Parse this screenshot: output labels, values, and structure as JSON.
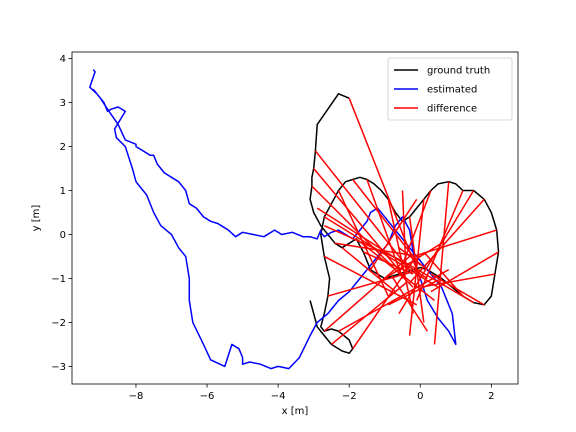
{
  "chart_data": {
    "type": "line",
    "title": "",
    "xlabel": "x [m]",
    "ylabel": "y [m]",
    "xlim": [
      -9.8,
      2.75
    ],
    "ylim": [
      -3.4,
      4.15
    ],
    "xticks": [
      -8,
      -6,
      -4,
      -2,
      0,
      2
    ],
    "yticks": [
      -3,
      -2,
      -1,
      0,
      1,
      2,
      3,
      4
    ],
    "xtick_labels": [
      "−8",
      "−6",
      "−4",
      "−2",
      "0",
      "2"
    ],
    "ytick_labels": [
      "−3",
      "−2",
      "−1",
      "0",
      "1",
      "2",
      "3",
      "4"
    ],
    "legend": {
      "position": "upper right",
      "entries": [
        {
          "label": "ground truth",
          "color": "#000000"
        },
        {
          "label": "estimated",
          "color": "#0000ff"
        },
        {
          "label": "difference",
          "color": "#ff0000"
        }
      ]
    },
    "series": [
      {
        "name": "ground truth",
        "color": "#000000",
        "x": [
          -2.0,
          -2.3,
          -2.9,
          -2.95,
          -3.0,
          -3.05,
          -3.05,
          -3.1,
          -3.0,
          -2.8,
          -2.6,
          -2.4,
          -2.2,
          -2.0,
          -1.8,
          -1.6,
          -1.4,
          -1.2,
          -1.0,
          -0.8,
          -0.6,
          -0.4,
          -0.2,
          0.0,
          0.2,
          0.4,
          0.6,
          0.9,
          1.2,
          1.5,
          1.8,
          2.0,
          2.1,
          2.2,
          2.15,
          2.0,
          1.8,
          1.5,
          1.2,
          1.0,
          0.8,
          0.5,
          0.3,
          0.1,
          -0.1,
          -0.3,
          -0.5,
          -0.7,
          -0.9,
          -1.1,
          -1.3,
          -1.5,
          -1.7,
          -1.9,
          -2.1,
          -2.3,
          -2.5,
          -2.7,
          -2.8,
          -2.7,
          -2.55,
          -2.6,
          -2.7,
          -2.8,
          -2.7,
          -2.5,
          -2.3,
          -2.0,
          -1.9,
          -2.0,
          -2.2,
          -2.5,
          -2.7,
          -2.9,
          -3.0,
          -3.1
        ],
        "y": [
          3.1,
          3.2,
          2.5,
          1.9,
          1.5,
          1.3,
          1.1,
          0.8,
          0.5,
          0.2,
          0.0,
          -0.2,
          -0.3,
          -0.2,
          -0.1,
          -0.4,
          -0.8,
          -0.9,
          -1.0,
          -0.95,
          -0.9,
          -0.85,
          -0.8,
          -0.75,
          -0.8,
          -0.9,
          -1.0,
          -1.2,
          -1.4,
          -1.55,
          -1.6,
          -1.4,
          -0.9,
          -0.4,
          0.1,
          0.5,
          0.8,
          1.0,
          1.0,
          1.15,
          1.2,
          1.15,
          1.0,
          0.8,
          0.6,
          0.4,
          0.3,
          0.5,
          0.8,
          1.0,
          1.15,
          1.25,
          1.3,
          1.25,
          1.2,
          1.0,
          0.7,
          0.4,
          0.0,
          -0.5,
          -1.0,
          -1.4,
          -1.8,
          -2.1,
          -2.2,
          -2.15,
          -2.2,
          -2.4,
          -2.6,
          -2.7,
          -2.65,
          -2.5,
          -2.3,
          -2.1,
          -1.8,
          -1.5
        ]
      },
      {
        "name": "estimated",
        "color": "#0000ff",
        "x": [
          -9.2,
          -9.15,
          -9.3,
          -9.1,
          -8.9,
          -8.8,
          -8.7,
          -8.5,
          -8.3,
          -8.6,
          -8.55,
          -8.3,
          -8.1,
          -8.0,
          -7.9,
          -7.7,
          -7.5,
          -7.3,
          -7.0,
          -6.8,
          -6.6,
          -6.5,
          -6.5,
          -6.4,
          -6.1,
          -5.9,
          -5.5,
          -5.3,
          -5.1,
          -5.0,
          -5.0,
          -4.8,
          -4.5,
          -4.2,
          -4.0,
          -3.7,
          -3.4,
          -3.1,
          -2.9,
          -2.6,
          -2.3,
          -2.0,
          -1.7,
          -1.5,
          -1.3,
          -1.1,
          -0.9,
          -0.8,
          -0.7,
          -0.5,
          -0.3,
          -0.2,
          -0.1,
          0.0,
          0.2,
          0.5,
          0.8,
          1.0,
          0.9,
          0.6,
          0.3,
          0.0,
          -0.3,
          -0.6,
          -0.9,
          -1.2,
          -1.4,
          -1.5,
          -1.7,
          -1.9,
          -2.1,
          -2.3,
          -2.5,
          -2.6,
          -2.7,
          -2.8,
          -2.8,
          -2.85,
          -2.9,
          -3.1,
          -3.3,
          -3.6,
          -3.9,
          -4.1,
          -4.4,
          -4.7,
          -5.0,
          -5.2,
          -5.4,
          -5.6,
          -5.7,
          -5.9,
          -6.1,
          -6.3,
          -6.5,
          -6.6,
          -6.8,
          -7.0,
          -7.2,
          -7.4,
          -7.5,
          -7.6,
          -7.8,
          -8.0,
          -8.0,
          -8.3,
          -8.5,
          -8.8,
          -9.0,
          -9.2
        ],
        "y": [
          3.75,
          3.7,
          3.35,
          3.2,
          3.0,
          2.8,
          2.85,
          2.9,
          2.8,
          2.4,
          2.2,
          2.0,
          1.5,
          1.2,
          1.1,
          0.9,
          0.5,
          0.2,
          0.0,
          -0.3,
          -0.5,
          -1.0,
          -1.5,
          -2.0,
          -2.5,
          -2.85,
          -3.0,
          -2.5,
          -2.6,
          -2.8,
          -2.95,
          -2.9,
          -2.95,
          -3.05,
          -3.0,
          -3.05,
          -2.8,
          -2.3,
          -2.0,
          -1.8,
          -1.5,
          -1.3,
          -1.0,
          -0.8,
          -0.6,
          -0.4,
          -0.2,
          0.0,
          0.2,
          0.4,
          0.1,
          -0.4,
          -0.8,
          -1.0,
          -1.5,
          -1.9,
          -2.2,
          -2.5,
          -1.8,
          -1.2,
          -0.9,
          -0.6,
          -0.3,
          0.0,
          0.3,
          0.6,
          0.5,
          0.3,
          0.1,
          -0.1,
          0.0,
          0.1,
          0.05,
          0.0,
          -0.05,
          0.05,
          0.1,
          0.0,
          -0.1,
          -0.05,
          -0.05,
          0.05,
          0.0,
          0.1,
          -0.05,
          0.0,
          0.05,
          -0.05,
          0.1,
          0.2,
          0.25,
          0.3,
          0.4,
          0.6,
          0.7,
          1.0,
          1.2,
          1.3,
          1.4,
          1.6,
          1.8,
          1.8,
          1.9,
          2.0,
          2.05,
          2.15,
          2.5,
          2.85,
          3.1,
          3.3
        ]
      },
      {
        "name": "difference",
        "color": "#ff0000",
        "segments": [
          [
            [
              -2.95,
              1.9
            ],
            [
              -0.3,
              -0.8
            ]
          ],
          [
            [
              -3.0,
              1.5
            ],
            [
              -0.4,
              -1.0
            ]
          ],
          [
            [
              -3.05,
              1.1
            ],
            [
              -0.2,
              -1.2
            ]
          ],
          [
            [
              -2.9,
              0.6
            ],
            [
              0.2,
              -1.0
            ]
          ],
          [
            [
              -2.7,
              0.2
            ],
            [
              -0.5,
              -0.6
            ]
          ],
          [
            [
              -2.4,
              -0.2
            ],
            [
              0.0,
              -0.5
            ]
          ],
          [
            [
              -2.2,
              -0.3
            ],
            [
              -0.7,
              -1.3
            ]
          ],
          [
            [
              -1.8,
              -0.1
            ],
            [
              0.4,
              -1.5
            ]
          ],
          [
            [
              -1.4,
              -0.8
            ],
            [
              -0.1,
              0.8
            ]
          ],
          [
            [
              -1.0,
              -1.0
            ],
            [
              0.6,
              -0.2
            ]
          ],
          [
            [
              -0.4,
              -0.85
            ],
            [
              -0.5,
              1.0
            ]
          ],
          [
            [
              0.2,
              -0.8
            ],
            [
              -0.6,
              -0.3
            ]
          ],
          [
            [
              0.6,
              -1.0
            ],
            [
              -0.9,
              -1.6
            ]
          ],
          [
            [
              1.2,
              -1.4
            ],
            [
              0.1,
              -0.4
            ]
          ],
          [
            [
              1.8,
              -1.6
            ],
            [
              0.3,
              -0.9
            ]
          ],
          [
            [
              2.1,
              -0.9
            ],
            [
              0.0,
              -1.2
            ]
          ],
          [
            [
              2.15,
              0.1
            ],
            [
              -0.2,
              -0.5
            ]
          ],
          [
            [
              1.8,
              0.8
            ],
            [
              -0.3,
              -1.1
            ]
          ],
          [
            [
              1.2,
              1.0
            ],
            [
              -0.1,
              -1.5
            ]
          ],
          [
            [
              0.8,
              1.2
            ],
            [
              0.4,
              -2.5
            ]
          ],
          [
            [
              0.3,
              1.0
            ],
            [
              -0.6,
              -0.9
            ]
          ],
          [
            [
              -0.3,
              0.4
            ],
            [
              0.1,
              -2.0
            ]
          ],
          [
            [
              -0.9,
              0.8
            ],
            [
              -0.2,
              -1.8
            ]
          ],
          [
            [
              -1.5,
              1.25
            ],
            [
              -0.5,
              -1.0
            ]
          ],
          [
            [
              -1.9,
              1.25
            ],
            [
              0.0,
              -0.7
            ]
          ],
          [
            [
              -2.3,
              1.0
            ],
            [
              -0.9,
              -1.4
            ]
          ],
          [
            [
              -2.7,
              0.4
            ],
            [
              0.5,
              -1.2
            ]
          ],
          [
            [
              -2.7,
              -0.5
            ],
            [
              -0.1,
              -1.6
            ]
          ],
          [
            [
              -2.6,
              -1.4
            ],
            [
              0.0,
              -0.8
            ]
          ],
          [
            [
              -2.7,
              -2.2
            ],
            [
              -0.3,
              -0.5
            ]
          ],
          [
            [
              -2.3,
              -2.2
            ],
            [
              0.8,
              -0.8
            ]
          ],
          [
            [
              -1.9,
              -2.6
            ],
            [
              -0.2,
              -0.6
            ]
          ],
          [
            [
              -2.5,
              -2.5
            ],
            [
              -0.4,
              -1.1
            ]
          ],
          [
            [
              -2.0,
              3.1
            ],
            [
              0.0,
              -1.0
            ]
          ],
          [
            [
              -1.6,
              -0.4
            ],
            [
              -0.2,
              -0.9
            ]
          ],
          [
            [
              -0.8,
              -0.95
            ],
            [
              0.2,
              -2.2
            ]
          ],
          [
            [
              1.5,
              -1.55
            ],
            [
              -0.5,
              -0.6
            ]
          ],
          [
            [
              2.2,
              -0.4
            ],
            [
              0.3,
              -1.3
            ]
          ],
          [
            [
              1.5,
              1.0
            ],
            [
              -0.6,
              -1.8
            ]
          ],
          [
            [
              0.1,
              0.8
            ],
            [
              -0.3,
              -2.3
            ]
          ]
        ]
      }
    ]
  }
}
